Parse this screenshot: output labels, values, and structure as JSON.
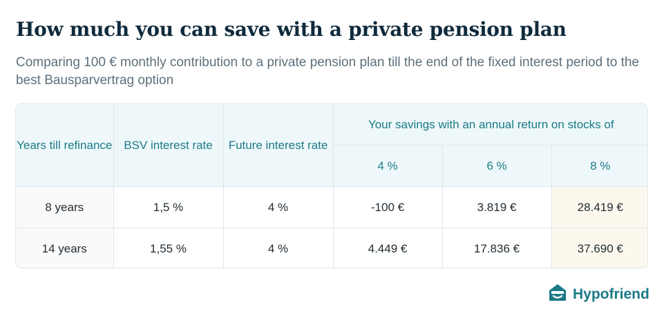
{
  "title": "How much you can save with a private pension plan",
  "subtitle": "Comparing 100 € monthly contribution to a private pension plan till the end of the fixed interest period to the best Bausparvertrag option",
  "table": {
    "headers": {
      "years": "Years till refinance",
      "bsv": "BSV interest rate",
      "future": "Future interest rate",
      "savings_group": "Your savings with an annual return on stocks of",
      "returns": [
        "4 %",
        "6 %",
        "8 %"
      ]
    },
    "rows": [
      {
        "years": "8 years",
        "bsv": "1,5 %",
        "future": "4 %",
        "r4": "-100 €",
        "r6": "3.819 €",
        "r8": "28.419 €"
      },
      {
        "years": "14 years",
        "bsv": "1,55 %",
        "future": "4 %",
        "r4": "4.449 €",
        "r6": "17.836 €",
        "r8": "37.690 €"
      }
    ]
  },
  "brand": {
    "name": "Hypofriend",
    "logo_icon": "house-smile-icon",
    "color": "#1b7a86"
  },
  "colors": {
    "header_bg": "#eef8fa",
    "highlight_bg": "#fdf8ed",
    "accent": "#1b7a86",
    "title": "#0f2a3c"
  }
}
